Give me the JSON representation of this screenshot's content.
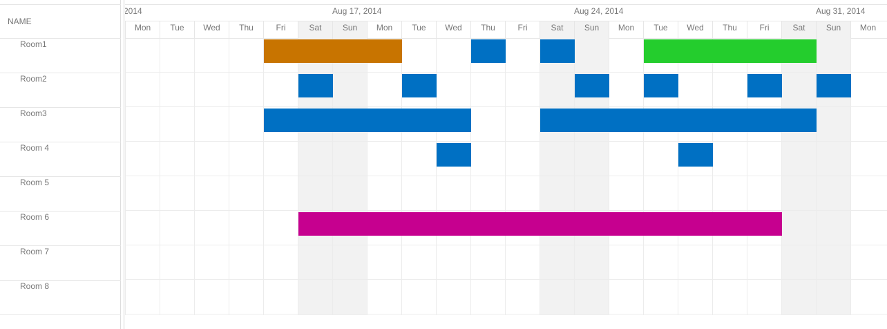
{
  "scheduler": {
    "name_header": "NAME",
    "week_labels": [
      "2014",
      "Aug 17, 2014",
      "Aug 24, 2014",
      "Aug 31, 2014"
    ],
    "days": [
      {
        "label": "Mon",
        "weekend": false
      },
      {
        "label": "Tue",
        "weekend": false
      },
      {
        "label": "Wed",
        "weekend": false
      },
      {
        "label": "Thu",
        "weekend": false
      },
      {
        "label": "Fri",
        "weekend": false
      },
      {
        "label": "Sat",
        "weekend": true
      },
      {
        "label": "Sun",
        "weekend": true
      },
      {
        "label": "Mon",
        "weekend": false
      },
      {
        "label": "Tue",
        "weekend": false
      },
      {
        "label": "Wed",
        "weekend": false
      },
      {
        "label": "Thu",
        "weekend": false
      },
      {
        "label": "Fri",
        "weekend": false
      },
      {
        "label": "Sat",
        "weekend": true
      },
      {
        "label": "Sun",
        "weekend": true
      },
      {
        "label": "Mon",
        "weekend": false
      },
      {
        "label": "Tue",
        "weekend": false
      },
      {
        "label": "Wed",
        "weekend": false
      },
      {
        "label": "Thu",
        "weekend": false
      },
      {
        "label": "Fri",
        "weekend": false
      },
      {
        "label": "Sat",
        "weekend": true
      },
      {
        "label": "Sun",
        "weekend": true
      },
      {
        "label": "Mon",
        "weekend": false
      }
    ],
    "resources": [
      "Room1",
      "Room2",
      "Room3",
      "Room 4",
      "Room 5",
      "Room 6",
      "Room 7",
      "Room 8"
    ],
    "colors": {
      "blue": "#0070c3",
      "orange": "#c87400",
      "green": "#24cd2d",
      "magenta": "#c6008f"
    },
    "events": [
      {
        "room": 0,
        "start_day": 4,
        "span_days": 4,
        "color": "orange"
      },
      {
        "room": 0,
        "start_day": 10,
        "span_days": 1,
        "color": "blue"
      },
      {
        "room": 0,
        "start_day": 12,
        "span_days": 1,
        "color": "blue"
      },
      {
        "room": 0,
        "start_day": 15,
        "span_days": 5,
        "color": "green"
      },
      {
        "room": 1,
        "start_day": 5,
        "span_days": 1,
        "color": "blue"
      },
      {
        "room": 1,
        "start_day": 8,
        "span_days": 1,
        "color": "blue"
      },
      {
        "room": 1,
        "start_day": 13,
        "span_days": 1,
        "color": "blue"
      },
      {
        "room": 1,
        "start_day": 15,
        "span_days": 1,
        "color": "blue"
      },
      {
        "room": 1,
        "start_day": 18,
        "span_days": 1,
        "color": "blue"
      },
      {
        "room": 1,
        "start_day": 20,
        "span_days": 1,
        "color": "blue"
      },
      {
        "room": 2,
        "start_day": 4,
        "span_days": 6,
        "color": "blue"
      },
      {
        "room": 2,
        "start_day": 12,
        "span_days": 8,
        "color": "blue"
      },
      {
        "room": 3,
        "start_day": 9,
        "span_days": 1,
        "color": "blue"
      },
      {
        "room": 3,
        "start_day": 16,
        "span_days": 1,
        "color": "blue"
      },
      {
        "room": 5,
        "start_day": 5,
        "span_days": 14,
        "color": "magenta"
      }
    ]
  }
}
